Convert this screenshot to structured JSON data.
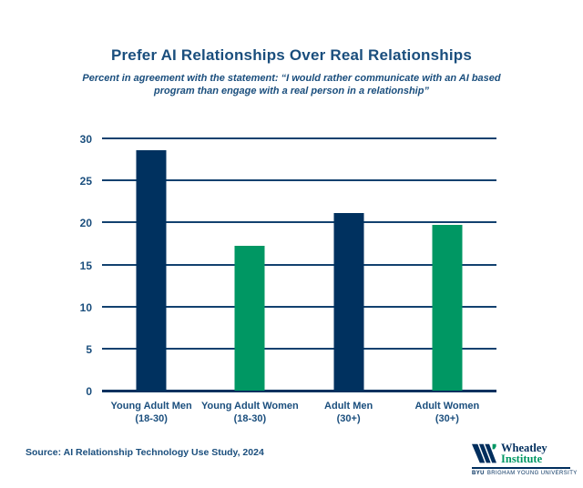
{
  "source": "Source: AI Relationship Technology Use Study, 2024",
  "colors": {
    "navy": "#00315F",
    "green": "#009763",
    "text_navy": "#1A4E7D"
  },
  "logo": {
    "wordmark_line1": "Wheatley",
    "wordmark_line2": "Institute",
    "byu": "BYU",
    "byu_suffix": "BRIGHAM YOUNG UNIVERSITY"
  },
  "chart_data": {
    "type": "bar",
    "title": "Prefer AI Relationships Over Real Relationships",
    "subtitle": "Percent in agreement with the statement: “I would rather communicate with an AI based program than engage with a real person in a relationship”",
    "categories": [
      {
        "label": "Young Adult Men",
        "sub": "(18-30)"
      },
      {
        "label": "Young Adult Women",
        "sub": "(18-30)"
      },
      {
        "label": "Adult Men",
        "sub": "(30+)"
      },
      {
        "label": "Adult Women",
        "sub": "(30+)"
      }
    ],
    "values": [
      28.6,
      17.2,
      21.1,
      19.7
    ],
    "bar_colors": [
      "#00315F",
      "#009763",
      "#00315F",
      "#009763"
    ],
    "xlabel": "",
    "ylabel": "",
    "ylim": [
      0,
      30
    ],
    "ytick_step": 5,
    "grid": true,
    "legend": false
  }
}
